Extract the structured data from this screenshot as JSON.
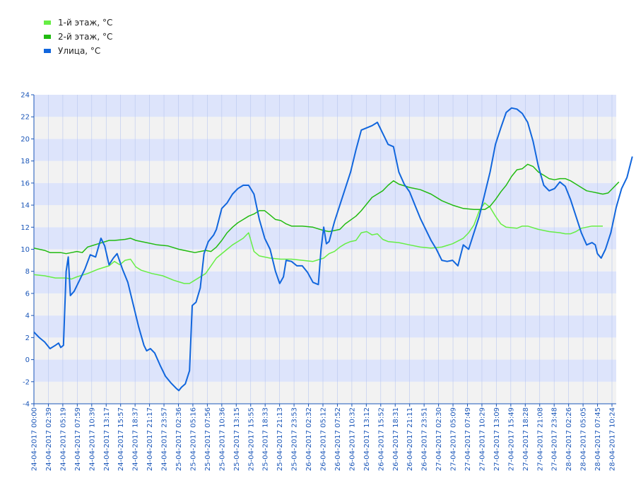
{
  "chart_data": {
    "type": "line",
    "title": "",
    "xlabel": "",
    "ylabel": "",
    "ylim": [
      -4,
      24
    ],
    "yticks": [
      -4,
      -2,
      0,
      2,
      4,
      6,
      8,
      10,
      12,
      14,
      16,
      18,
      20,
      22,
      24
    ],
    "grid": "horizontal bands",
    "legend_position": "top-left",
    "x_tick_labels": [
      "24-04-2017 00:00",
      "24-04-2017 02:39",
      "24-04-2017 05:19",
      "24-04-2017 07:59",
      "24-04-2017 10:39",
      "24-04-2017 13:17",
      "24-04-2017 15:57",
      "24-04-2017 18:37",
      "24-04-2017 21:17",
      "24-04-2017 23:57",
      "25-04-2017 02:36",
      "25-04-2017 05:16",
      "25-04-2017 07:56",
      "25-04-2017 10:36",
      "25-04-2017 13:15",
      "25-04-2017 15:55",
      "25-04-2017 18:33",
      "25-04-2017 21:13",
      "25-04-2017 23:53",
      "26-04-2017 02:32",
      "26-04-2017 05:12",
      "26-04-2017 07:52",
      "26-04-2017 10:32",
      "26-04-2017 13:12",
      "26-04-2017 15:52",
      "26-04-2017 18:31",
      "26-04-2017 21:11",
      "26-04-2017 23:51",
      "27-04-2017 02:30",
      "27-04-2017 05:09",
      "27-04-2017 07:49",
      "27-04-2017 10:29",
      "27-04-2017 13:09",
      "27-04-2017 15:49",
      "27-04-2017 18:28",
      "27-04-2017 21:08",
      "27-04-2017 23:48",
      "28-04-2017 02:26",
      "28-04-2017 05:05",
      "28-04-2017 07:45",
      "28-04-2017 10:24"
    ],
    "x_hours_start": 0,
    "x_hours_end": 108.5,
    "series": [
      {
        "name": "1-й этаж, °C",
        "color": "#66ee44",
        "points": [
          [
            0,
            7.7
          ],
          [
            2,
            7.6
          ],
          [
            4,
            7.4
          ],
          [
            6,
            7.4
          ],
          [
            7,
            7.3
          ],
          [
            8,
            7.5
          ],
          [
            10,
            7.8
          ],
          [
            12,
            8.2
          ],
          [
            14,
            8.5
          ],
          [
            15,
            8.9
          ],
          [
            16,
            8.6
          ],
          [
            17,
            9.0
          ],
          [
            18,
            9.1
          ],
          [
            19,
            8.4
          ],
          [
            20,
            8.1
          ],
          [
            22,
            7.8
          ],
          [
            24,
            7.6
          ],
          [
            26,
            7.2
          ],
          [
            28,
            6.9
          ],
          [
            29,
            6.9
          ],
          [
            30,
            7.2
          ],
          [
            32,
            7.8
          ],
          [
            33,
            8.5
          ],
          [
            34,
            9.2
          ],
          [
            36,
            10.0
          ],
          [
            37,
            10.4
          ],
          [
            38,
            10.7
          ],
          [
            39,
            11.0
          ],
          [
            40,
            11.5
          ],
          [
            41,
            9.8
          ],
          [
            42,
            9.4
          ],
          [
            44,
            9.2
          ],
          [
            46,
            9.1
          ],
          [
            48,
            9.1
          ],
          [
            50,
            9.0
          ],
          [
            52,
            8.9
          ],
          [
            54,
            9.2
          ],
          [
            55,
            9.6
          ],
          [
            56,
            9.8
          ],
          [
            57,
            10.2
          ],
          [
            58,
            10.5
          ],
          [
            59,
            10.7
          ],
          [
            60,
            10.8
          ],
          [
            61,
            11.5
          ],
          [
            62,
            11.6
          ],
          [
            63,
            11.3
          ],
          [
            64,
            11.4
          ],
          [
            65,
            10.9
          ],
          [
            66,
            10.7
          ],
          [
            68,
            10.6
          ],
          [
            70,
            10.4
          ],
          [
            72,
            10.2
          ],
          [
            74,
            10.1
          ],
          [
            76,
            10.2
          ],
          [
            78,
            10.5
          ],
          [
            80,
            11.0
          ],
          [
            81,
            11.5
          ],
          [
            82,
            12.2
          ],
          [
            83,
            13.5
          ],
          [
            84,
            14.2
          ],
          [
            85,
            13.8
          ],
          [
            86,
            13.0
          ],
          [
            87,
            12.3
          ],
          [
            88,
            12.0
          ],
          [
            90,
            11.9
          ],
          [
            91,
            12.1
          ],
          [
            92,
            12.1
          ],
          [
            94,
            11.8
          ],
          [
            96,
            11.6
          ],
          [
            98,
            11.5
          ],
          [
            99,
            11.4
          ],
          [
            100,
            11.4
          ],
          [
            101,
            11.6
          ],
          [
            102,
            11.9
          ],
          [
            104,
            12.1
          ],
          [
            106,
            12.1
          ]
        ]
      },
      {
        "name": "2-й этаж, °C",
        "color": "#22bb11",
        "points": [
          [
            0,
            10.1
          ],
          [
            2,
            9.9
          ],
          [
            3,
            9.7
          ],
          [
            5,
            9.7
          ],
          [
            6,
            9.6
          ],
          [
            7,
            9.7
          ],
          [
            8,
            9.8
          ],
          [
            9,
            9.7
          ],
          [
            10,
            10.2
          ],
          [
            12,
            10.5
          ],
          [
            14,
            10.8
          ],
          [
            15,
            10.8
          ],
          [
            17,
            10.9
          ],
          [
            18,
            11.0
          ],
          [
            19,
            10.8
          ],
          [
            21,
            10.6
          ],
          [
            23,
            10.4
          ],
          [
            25,
            10.3
          ],
          [
            27,
            10.0
          ],
          [
            29,
            9.8
          ],
          [
            30,
            9.7
          ],
          [
            31,
            9.8
          ],
          [
            32,
            9.9
          ],
          [
            33,
            9.8
          ],
          [
            34,
            10.2
          ],
          [
            35,
            10.8
          ],
          [
            36,
            11.5
          ],
          [
            37,
            12.0
          ],
          [
            38,
            12.4
          ],
          [
            39,
            12.7
          ],
          [
            40,
            13.0
          ],
          [
            41,
            13.2
          ],
          [
            42,
            13.5
          ],
          [
            43,
            13.5
          ],
          [
            44,
            13.1
          ],
          [
            45,
            12.7
          ],
          [
            46,
            12.6
          ],
          [
            47,
            12.3
          ],
          [
            48,
            12.1
          ],
          [
            50,
            12.1
          ],
          [
            52,
            12.0
          ],
          [
            54,
            11.7
          ],
          [
            55,
            11.6
          ],
          [
            56,
            11.7
          ],
          [
            57,
            11.8
          ],
          [
            58,
            12.3
          ],
          [
            60,
            13.0
          ],
          [
            61,
            13.5
          ],
          [
            62,
            14.1
          ],
          [
            63,
            14.7
          ],
          [
            64,
            15.0
          ],
          [
            65,
            15.3
          ],
          [
            66,
            15.8
          ],
          [
            67,
            16.2
          ],
          [
            68,
            15.9
          ],
          [
            70,
            15.6
          ],
          [
            72,
            15.4
          ],
          [
            74,
            15.0
          ],
          [
            76,
            14.4
          ],
          [
            78,
            14.0
          ],
          [
            80,
            13.7
          ],
          [
            82,
            13.6
          ],
          [
            84,
            13.6
          ],
          [
            85,
            13.9
          ],
          [
            86,
            14.5
          ],
          [
            87,
            15.2
          ],
          [
            88,
            15.8
          ],
          [
            89,
            16.6
          ],
          [
            90,
            17.2
          ],
          [
            91,
            17.3
          ],
          [
            92,
            17.7
          ],
          [
            93,
            17.5
          ],
          [
            94,
            17.0
          ],
          [
            95,
            16.7
          ],
          [
            96,
            16.4
          ],
          [
            97,
            16.3
          ],
          [
            98,
            16.4
          ],
          [
            99,
            16.4
          ],
          [
            100,
            16.2
          ],
          [
            101,
            15.9
          ],
          [
            102,
            15.6
          ],
          [
            103,
            15.3
          ],
          [
            104,
            15.2
          ],
          [
            105,
            15.1
          ],
          [
            106,
            15.0
          ],
          [
            107,
            15.1
          ],
          [
            108,
            15.6
          ],
          [
            109,
            16.1
          ]
        ]
      },
      {
        "name": "Улица, °C",
        "color": "#1166dd",
        "points": [
          [
            0,
            2.5
          ],
          [
            1,
            2.0
          ],
          [
            2,
            1.6
          ],
          [
            3,
            1.0
          ],
          [
            4,
            1.3
          ],
          [
            4.6,
            1.5
          ],
          [
            5,
            1.1
          ],
          [
            5.5,
            1.3
          ],
          [
            6,
            8.0
          ],
          [
            6.4,
            9.3
          ],
          [
            6.8,
            5.8
          ],
          [
            7.5,
            6.2
          ],
          [
            8.5,
            7.2
          ],
          [
            9.5,
            8.2
          ],
          [
            10.5,
            9.5
          ],
          [
            11.5,
            9.3
          ],
          [
            12.5,
            11.0
          ],
          [
            13.2,
            10.3
          ],
          [
            14,
            8.6
          ],
          [
            14.8,
            9.2
          ],
          [
            15.5,
            9.6
          ],
          [
            16.5,
            8.2
          ],
          [
            17.5,
            7.0
          ],
          [
            18.5,
            5.0
          ],
          [
            19.5,
            3.0
          ],
          [
            20.5,
            1.3
          ],
          [
            21,
            0.8
          ],
          [
            21.7,
            1.0
          ],
          [
            22.5,
            0.6
          ],
          [
            23.5,
            -0.5
          ],
          [
            24.5,
            -1.5
          ],
          [
            25.5,
            -2.1
          ],
          [
            26.5,
            -2.6
          ],
          [
            27,
            -2.8
          ],
          [
            27.5,
            -2.5
          ],
          [
            28.2,
            -2.2
          ],
          [
            29,
            -1.0
          ],
          [
            29.5,
            4.9
          ],
          [
            30.2,
            5.2
          ],
          [
            31,
            6.5
          ],
          [
            31.7,
            9.6
          ],
          [
            32.5,
            10.7
          ],
          [
            33.5,
            11.3
          ],
          [
            34,
            11.8
          ],
          [
            35,
            13.7
          ],
          [
            36,
            14.2
          ],
          [
            37,
            15.0
          ],
          [
            38,
            15.5
          ],
          [
            39,
            15.8
          ],
          [
            40,
            15.8
          ],
          [
            41,
            15.0
          ],
          [
            42,
            12.7
          ],
          [
            43,
            11.0
          ],
          [
            44,
            10.0
          ],
          [
            45,
            8.0
          ],
          [
            45.8,
            6.9
          ],
          [
            46.5,
            7.5
          ],
          [
            47,
            9.0
          ],
          [
            48,
            8.9
          ],
          [
            49,
            8.5
          ],
          [
            50,
            8.5
          ],
          [
            51,
            7.9
          ],
          [
            52,
            7.0
          ],
          [
            53,
            6.8
          ],
          [
            53.5,
            10.0
          ],
          [
            54,
            12.0
          ],
          [
            54.5,
            10.5
          ],
          [
            55,
            10.7
          ],
          [
            56,
            12.5
          ],
          [
            57,
            14.0
          ],
          [
            58,
            15.5
          ],
          [
            59,
            17.0
          ],
          [
            60,
            19.0
          ],
          [
            61,
            20.8
          ],
          [
            62,
            21.0
          ],
          [
            63,
            21.2
          ],
          [
            64,
            21.5
          ],
          [
            65,
            20.5
          ],
          [
            66,
            19.5
          ],
          [
            67,
            19.3
          ],
          [
            68,
            17.0
          ],
          [
            69,
            15.9
          ],
          [
            70,
            15.2
          ],
          [
            71,
            14.0
          ],
          [
            72,
            12.8
          ],
          [
            73,
            11.8
          ],
          [
            74,
            10.8
          ],
          [
            75,
            10.0
          ],
          [
            76,
            9.0
          ],
          [
            77,
            8.9
          ],
          [
            78,
            9.0
          ],
          [
            79,
            8.5
          ],
          [
            80,
            10.4
          ],
          [
            81,
            10.0
          ],
          [
            82,
            11.5
          ],
          [
            83,
            13.0
          ],
          [
            84,
            15.0
          ],
          [
            85,
            17.0
          ],
          [
            86,
            19.5
          ],
          [
            87,
            21.0
          ],
          [
            88,
            22.4
          ],
          [
            89,
            22.8
          ],
          [
            90,
            22.7
          ],
          [
            91,
            22.3
          ],
          [
            92,
            21.5
          ],
          [
            93,
            19.8
          ],
          [
            94,
            17.5
          ],
          [
            95,
            15.8
          ],
          [
            96,
            15.3
          ],
          [
            97,
            15.5
          ],
          [
            98,
            16.1
          ],
          [
            99,
            15.7
          ],
          [
            100,
            14.5
          ],
          [
            101,
            13.0
          ],
          [
            102,
            11.5
          ],
          [
            103,
            10.4
          ],
          [
            104,
            10.6
          ],
          [
            104.6,
            10.4
          ],
          [
            105,
            9.6
          ],
          [
            105.7,
            9.2
          ],
          [
            106.5,
            10.0
          ],
          [
            107.5,
            11.5
          ],
          [
            108.5,
            13.8
          ],
          [
            109.5,
            15.5
          ],
          [
            110.5,
            16.5
          ],
          [
            111.5,
            18.4
          ]
        ]
      }
    ]
  }
}
